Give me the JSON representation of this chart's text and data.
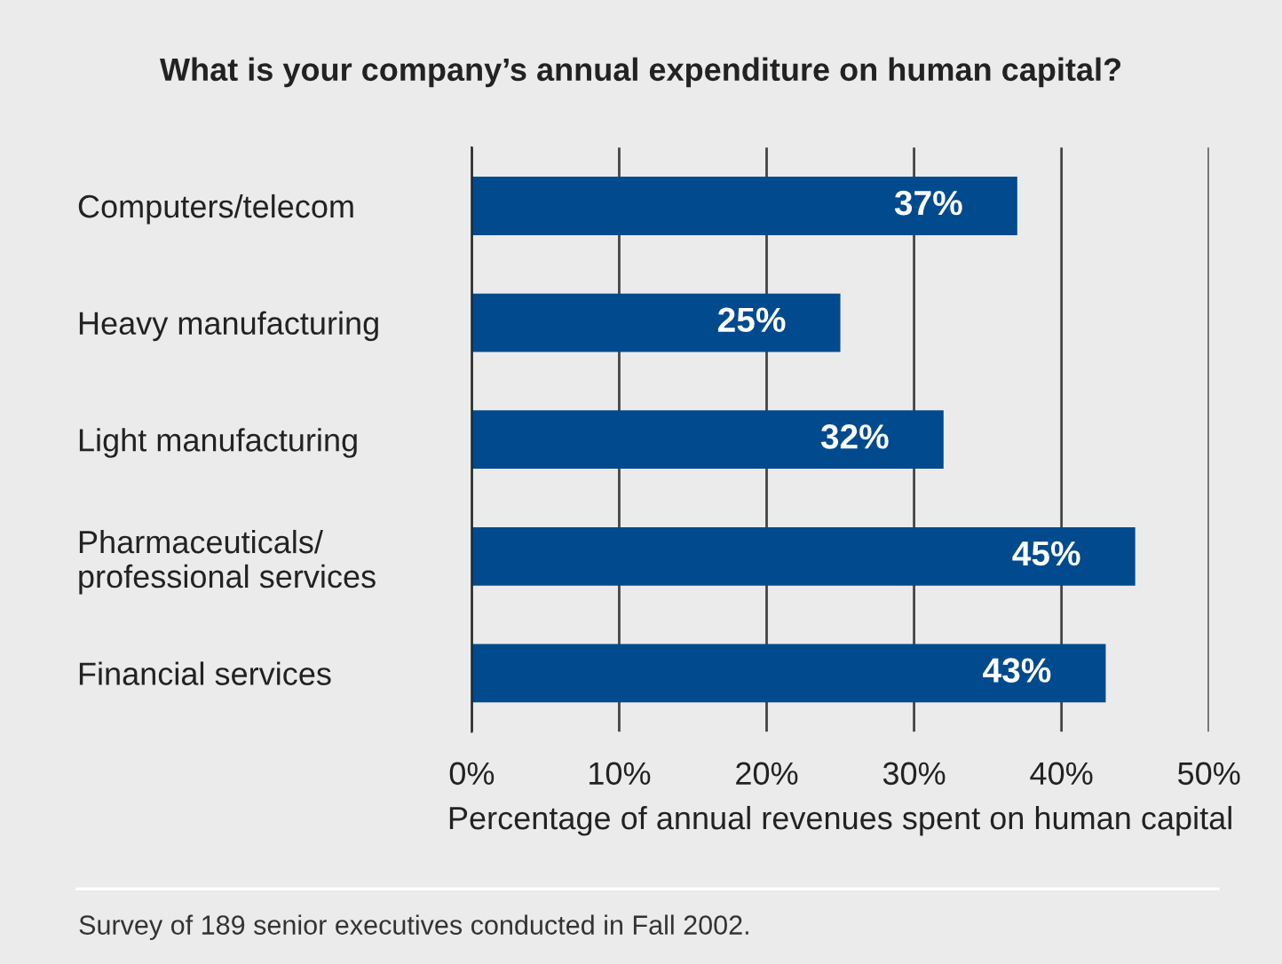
{
  "chart_data": {
    "type": "bar",
    "orientation": "horizontal",
    "title": "What is your company’s annual expenditure on human capital?",
    "categories": [
      "Computers/telecom",
      "Heavy manufacturing",
      "Light manufacturing",
      "Pharmaceuticals/\nprofessional services",
      "Financial services"
    ],
    "values": [
      37,
      25,
      32,
      45,
      43
    ],
    "value_labels": [
      "37%",
      "25%",
      "32%",
      "45%",
      "43%"
    ],
    "color": "#004a8d",
    "xlim": [
      0,
      50
    ],
    "xticks": [
      {
        "value": 0,
        "label": "0%"
      },
      {
        "value": 10,
        "label": "10%"
      },
      {
        "value": 20,
        "label": "20%"
      },
      {
        "value": 30,
        "label": "30%"
      },
      {
        "value": 40,
        "label": "40%"
      },
      {
        "value": 50,
        "label": "50%"
      }
    ],
    "xlabel": "Percentage of annual revenues spent on human capital",
    "grid": "x",
    "legend": false,
    "annotations": [
      "Survey of 189 senior executives conducted in Fall 2002."
    ]
  }
}
